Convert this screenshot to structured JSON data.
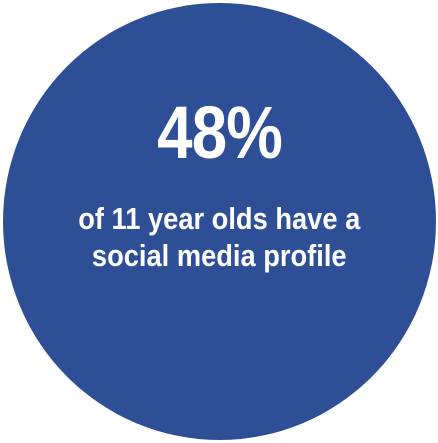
{
  "infographic": {
    "value": "48%",
    "caption_line1": "of 11 year olds have a",
    "caption_line2": "social media profile",
    "circle_color": "#2e4f96",
    "text_color": "#ffffff"
  }
}
